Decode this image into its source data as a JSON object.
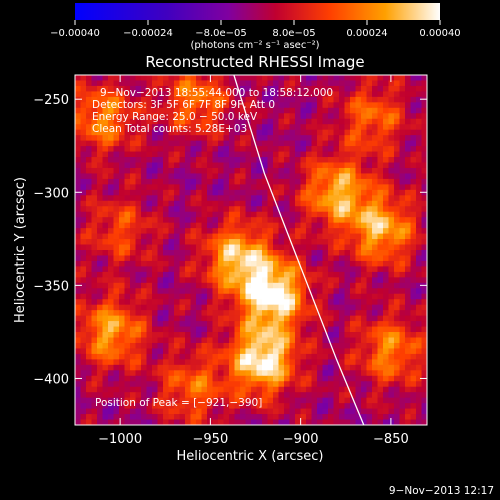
{
  "chart_data": {
    "type": "heatmap",
    "title": "Reconstructed RHESSI Image",
    "xlabel": "Heliocentric X (arcsec)",
    "ylabel": "Heliocentric Y (arcsec)",
    "xlim": [
      -1025,
      -830
    ],
    "ylim": [
      -425,
      -237
    ],
    "xticks": [
      -1000,
      -950,
      -900,
      -850
    ],
    "xtick_labels": [
      "−1000",
      "−950",
      "−900",
      "−850"
    ],
    "yticks": [
      -250,
      -300,
      -350,
      -400
    ],
    "ytick_labels": [
      "−250",
      "−300",
      "−350",
      "−400"
    ],
    "colorbar": {
      "range": [
        -0.0004,
        0.0004
      ],
      "ticks": [
        -0.0004,
        -0.00024,
        -8e-05,
        8e-05,
        0.00024,
        0.0004
      ],
      "tick_labels": [
        "−0.00040",
        "−0.00024",
        "−8.0e−05",
        "8.0e−05",
        "0.00024",
        "0.00040"
      ],
      "unit_label": "(photons cm⁻² s⁻¹ asec⁻²)",
      "colormap": "blue-purple-red-orange-yellow-white"
    },
    "annotations": {
      "time_range": "9−Nov−2013 18:55:44.000 to 18:58:12.000",
      "detectors": "Detectors: 3F 5F 6F 7F 8F 9F, Att 0",
      "energy": "Energy Range: 25.0 − 50.0 keV",
      "method": "Clean     Total counts: 5.28E+03",
      "peak": "Position of Peak = [−921,−390]"
    },
    "limb_curve": [
      [
        -937,
        -237
      ],
      [
        -920,
        -290
      ],
      [
        -900,
        -340
      ],
      [
        -880,
        -390
      ],
      [
        -865,
        -425
      ]
    ],
    "emission_sources": [
      {
        "x": -915,
        "y": -355,
        "value": 0.0004
      },
      {
        "x": -921,
        "y": -390,
        "value": 0.0004
      },
      {
        "x": -935,
        "y": -335,
        "value": 0.00032
      },
      {
        "x": -880,
        "y": -300,
        "value": 0.0003
      },
      {
        "x": -855,
        "y": -320,
        "value": 0.0003
      },
      {
        "x": -1005,
        "y": -375,
        "value": 0.00028
      },
      {
        "x": -1010,
        "y": -260,
        "value": 0.00024
      },
      {
        "x": -958,
        "y": -250,
        "value": 0.00022
      },
      {
        "x": -850,
        "y": -385,
        "value": 0.00024
      },
      {
        "x": -960,
        "y": -405,
        "value": 0.0002
      },
      {
        "x": -1000,
        "y": -320,
        "value": 0.00016
      },
      {
        "x": -860,
        "y": -260,
        "value": 0.0002
      }
    ],
    "date_stamp": "9−Nov−2013 12:17"
  }
}
